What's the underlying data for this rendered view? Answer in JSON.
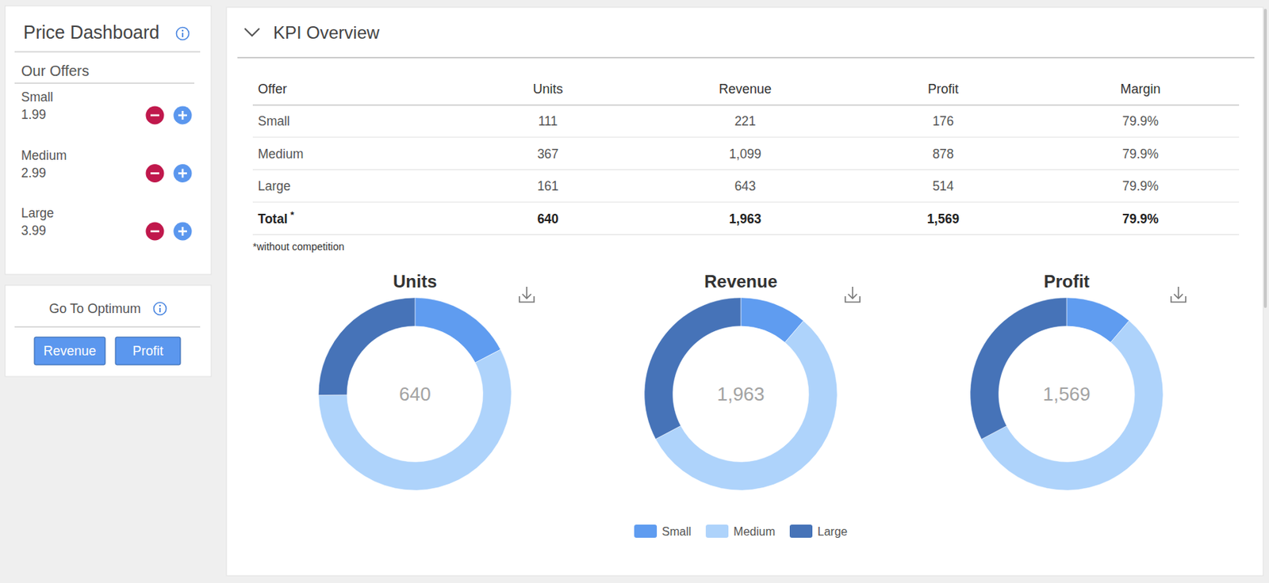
{
  "sidebar": {
    "title": "Price Dashboard",
    "offers_heading": "Our Offers",
    "offers": [
      {
        "name": "Small",
        "price": "1.99"
      },
      {
        "name": "Medium",
        "price": "2.99"
      },
      {
        "name": "Large",
        "price": "3.99"
      }
    ]
  },
  "optimum": {
    "title": "Go To Optimum",
    "buttons": [
      "Revenue",
      "Profit"
    ]
  },
  "kpi": {
    "title": "KPI Overview",
    "table": {
      "columns": [
        "Offer",
        "Units",
        "Revenue",
        "Profit",
        "Margin"
      ],
      "rows": [
        [
          "Small",
          "111",
          "221",
          "176",
          "79.9%"
        ],
        [
          "Medium",
          "367",
          "1,099",
          "878",
          "79.9%"
        ],
        [
          "Large",
          "161",
          "643",
          "514",
          "79.9%"
        ]
      ],
      "total": {
        "label": "Total",
        "marker": "*",
        "cells": [
          "640",
          "1,963",
          "1,569",
          "79.9%"
        ]
      }
    },
    "footnote": "*without competition"
  },
  "chart_data": [
    {
      "type": "pie",
      "title": "Units",
      "values": [
        111,
        367,
        161
      ],
      "colors": [
        "#5f9cf0",
        "#aed3fb",
        "#4673b8"
      ],
      "center_label": "640"
    },
    {
      "type": "pie",
      "title": "Revenue",
      "values": [
        221,
        1099,
        643
      ],
      "colors": [
        "#5f9cf0",
        "#aed3fb",
        "#4673b8"
      ],
      "center_label": "1,963"
    },
    {
      "type": "pie",
      "title": "Profit",
      "values": [
        176,
        878,
        514
      ],
      "colors": [
        "#5f9cf0",
        "#aed3fb",
        "#4673b8"
      ],
      "center_label": "1,569"
    }
  ],
  "legend_items": [
    "Small",
    "Medium",
    "Large"
  ]
}
